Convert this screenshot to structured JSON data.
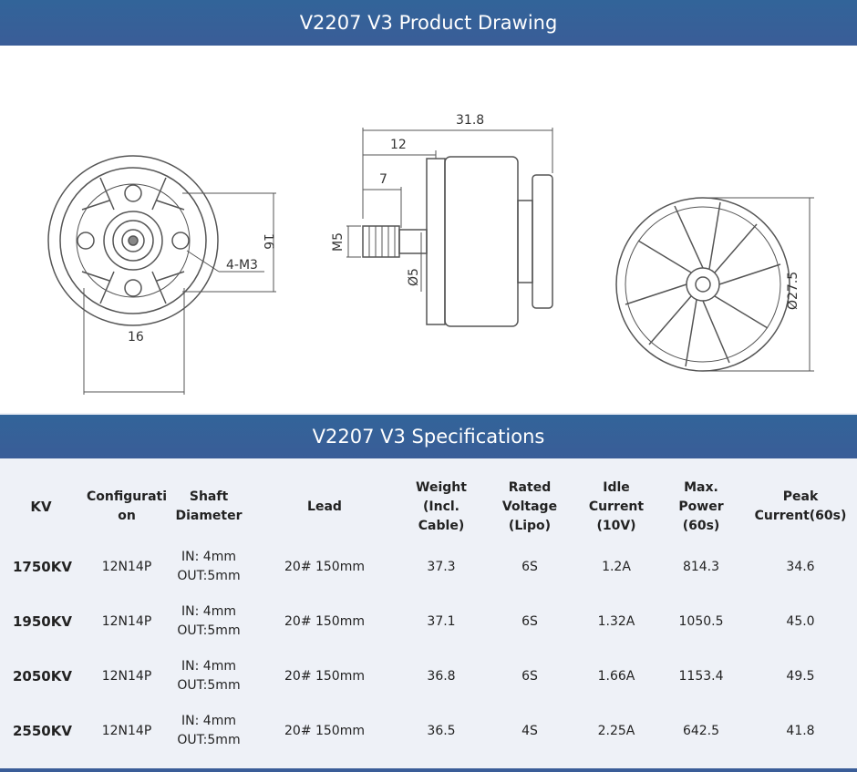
{
  "drawing_section": {
    "title": "V2207 V3 Product Drawing",
    "dims": {
      "front_height": "16",
      "front_width": "16",
      "screw": "4-M3",
      "total_length": "31.8",
      "shaft_length": "12",
      "thread_length": "7",
      "thread": "M5",
      "shaft_dia": "Ø5",
      "bell_dia": "Ø27.5"
    }
  },
  "spec_section": {
    "title": "V2207 V3 Specifications",
    "headers": [
      [
        "KV"
      ],
      [
        "Configurati",
        "on"
      ],
      [
        "Shaft",
        "Diameter"
      ],
      [
        "Lead"
      ],
      [
        "Weight",
        "(Incl.",
        "Cable)"
      ],
      [
        "Rated",
        "Voltage",
        "(Lipo)"
      ],
      [
        "Idle",
        "Current",
        "(10V)"
      ],
      [
        "Max.",
        "Power",
        "(60s)"
      ],
      [
        "Peak",
        "Current(60s)"
      ]
    ],
    "rows": [
      {
        "kv": "1750KV",
        "config": "12N14P",
        "shaft_in": "IN: 4mm",
        "shaft_out": "OUT:5mm",
        "lead": "20# 150mm",
        "weight": "37.3",
        "voltage": "6S",
        "idle": "1.2A",
        "power": "814.3",
        "peak": "34.6"
      },
      {
        "kv": "1950KV",
        "config": "12N14P",
        "shaft_in": "IN: 4mm",
        "shaft_out": "OUT:5mm",
        "lead": "20# 150mm",
        "weight": "37.1",
        "voltage": "6S",
        "idle": "1.32A",
        "power": "1050.5",
        "peak": "45.0"
      },
      {
        "kv": "2050KV",
        "config": "12N14P",
        "shaft_in": "IN: 4mm",
        "shaft_out": "OUT:5mm",
        "lead": "20# 150mm",
        "weight": "36.8",
        "voltage": "6S",
        "idle": "1.66A",
        "power": "1153.4",
        "peak": "49.5"
      },
      {
        "kv": "2550KV",
        "config": "12N14P",
        "shaft_in": "IN: 4mm",
        "shaft_out": "OUT:5mm",
        "lead": "20# 150mm",
        "weight": "36.5",
        "voltage": "4S",
        "idle": "2.25A",
        "power": "642.5",
        "peak": "41.8"
      }
    ]
  }
}
